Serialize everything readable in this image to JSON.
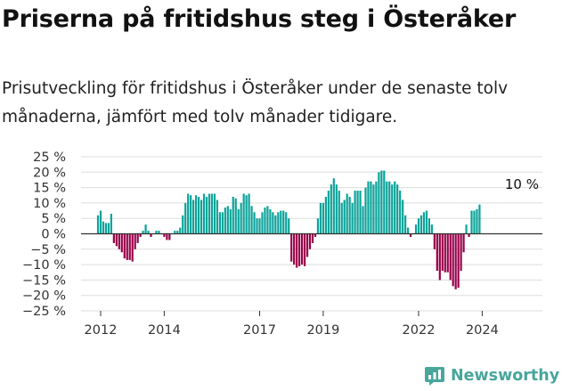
{
  "title": "Priserna på fritidshus steg i Österåker",
  "subtitle": "Prisutveckling för fritidshus i Österåker under de senaste tolv månaderna, jämfört med tolv månader tidigare.",
  "brand": {
    "name": "Newsworthy",
    "color": "#48a69b"
  },
  "colors": {
    "positive": "#0aa39a",
    "negative": "#98004a",
    "grid": "#dddddd",
    "zero_line": "#333333"
  },
  "chart_data": {
    "type": "bar",
    "title": "",
    "xlabel": "",
    "ylabel": "",
    "ylim": [
      -25,
      25
    ],
    "y_ticks": [
      25,
      20,
      15,
      10,
      5,
      0,
      -5,
      -10,
      -15,
      -20,
      -25
    ],
    "y_tick_labels": [
      "25 %",
      "20 %",
      "15 %",
      "10 %",
      "5 %",
      "0 %",
      "−5 %",
      "−10 %",
      "−15 %",
      "−20 %",
      "−25 %"
    ],
    "x_tick_labels": [
      "2012",
      "2014",
      "2017",
      "2019",
      "2022",
      "2024"
    ],
    "x_tick_years": [
      2012,
      2014,
      2017,
      2019,
      2022,
      2024
    ],
    "x_start": "2011-12",
    "annotation": "10 %",
    "grid": true,
    "unit": "%",
    "values": [
      6,
      7.5,
      4,
      3.5,
      3.5,
      6.5,
      -3,
      -4,
      -5,
      -6,
      -8,
      -8.5,
      -8.5,
      -9,
      -5,
      -3,
      -1,
      1,
      3,
      1,
      -1,
      0,
      1,
      1,
      0,
      -1,
      -2,
      -2,
      0,
      1,
      1,
      2,
      6,
      10,
      13,
      12.5,
      11,
      12.5,
      12,
      11,
      13,
      12,
      13,
      13,
      13,
      11,
      7,
      7,
      8.5,
      9,
      8,
      12,
      11.5,
      8,
      10,
      13,
      12.5,
      13,
      9,
      7,
      5,
      5,
      7,
      8.5,
      9,
      8,
      7,
      6,
      7,
      7.5,
      7.5,
      7,
      5,
      -9,
      -10,
      -11,
      -10.5,
      -10,
      -10.5,
      -7.5,
      -5,
      -3,
      -1,
      5,
      10,
      10,
      12,
      14,
      16,
      18,
      16,
      14,
      10,
      11,
      13,
      12,
      10,
      14,
      14,
      14,
      9,
      15,
      17,
      17,
      16,
      17,
      20,
      20.5,
      20.5,
      17,
      17,
      16,
      17,
      16,
      14,
      11,
      6,
      2,
      -1,
      0,
      3,
      5,
      6,
      7,
      7.5,
      5,
      3,
      -5,
      -12,
      -15,
      -12,
      -12.5,
      -12.5,
      -15,
      -17,
      -18,
      -17.5,
      -12,
      -6,
      3,
      -1,
      7.5,
      7.5,
      8,
      9.5
    ]
  }
}
